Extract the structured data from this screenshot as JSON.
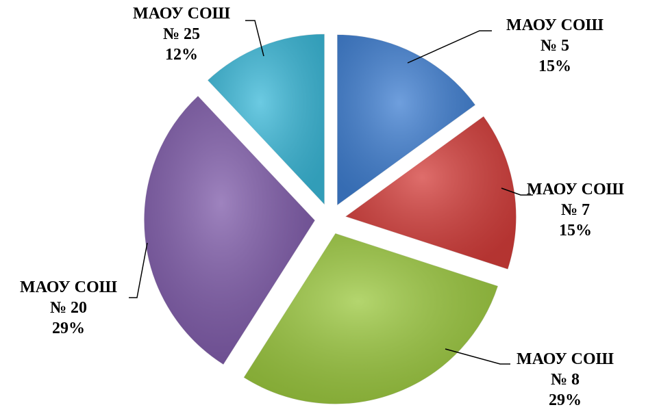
{
  "chart_data": {
    "type": "pie",
    "categories": [
      "МАОУ СОШ № 5",
      "МАОУ СОШ № 7",
      "МАОУ СОШ № 8",
      "МАОУ СОШ № 20",
      "МАОУ СОШ № 25"
    ],
    "values": [
      15,
      15,
      29,
      29,
      12
    ],
    "value_labels": [
      "15%",
      "15%",
      "29%",
      "29%",
      "12%"
    ],
    "colors": [
      "#3f7fd2",
      "#d43d3a",
      "#9bc83e",
      "#7e5aa9",
      "#3bb9d9"
    ]
  }
}
